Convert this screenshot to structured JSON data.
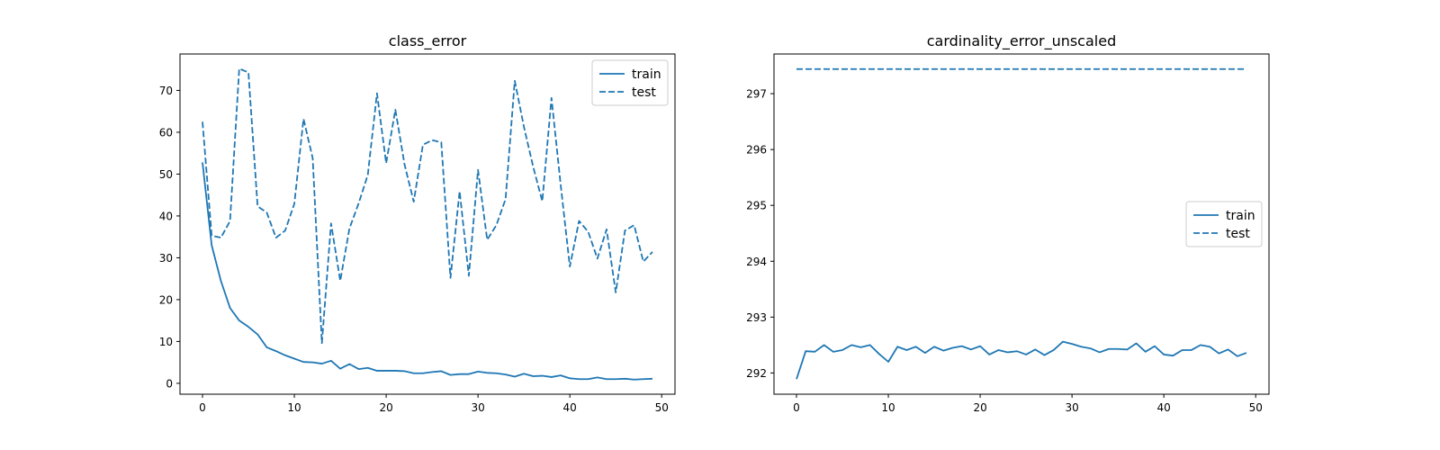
{
  "chart_data": [
    {
      "type": "line",
      "title": "class_error",
      "xlabel": "",
      "ylabel": "",
      "xlim": [
        -2.45,
        51.45
      ],
      "ylim": [
        -2.6,
        78.7
      ],
      "xticks": [
        0,
        10,
        20,
        30,
        40,
        50
      ],
      "yticks": [
        0,
        10,
        20,
        30,
        40,
        50,
        60,
        70
      ],
      "grid": false,
      "legend": "top-right",
      "series": [
        {
          "name": "train",
          "style": "solid",
          "color": "#1f77b4",
          "x": [
            0,
            1,
            2,
            3,
            4,
            5,
            6,
            7,
            8,
            9,
            10,
            11,
            12,
            13,
            14,
            15,
            16,
            17,
            18,
            19,
            20,
            21,
            22,
            23,
            24,
            25,
            26,
            27,
            28,
            29,
            30,
            31,
            32,
            33,
            34,
            35,
            36,
            37,
            38,
            39,
            40,
            41,
            42,
            43,
            44,
            45,
            46,
            47,
            48,
            49
          ],
          "values": [
            52.8,
            33,
            24.5,
            18,
            15,
            13.5,
            11.7,
            8.6,
            7.7,
            6.7,
            5.9,
            5.1,
            5,
            4.7,
            5.4,
            3.5,
            4.6,
            3.4,
            3.7,
            3,
            3,
            3,
            2.9,
            2.4,
            2.4,
            2.7,
            2.9,
            2,
            2.2,
            2.2,
            2.8,
            2.5,
            2.4,
            2.1,
            1.6,
            2.3,
            1.7,
            1.8,
            1.5,
            1.9,
            1.2,
            1,
            1,
            1.4,
            1,
            1,
            1.1,
            0.9,
            1,
            1.1
          ]
        },
        {
          "name": "test",
          "style": "dashed",
          "color": "#1f77b4",
          "x": [
            0,
            1,
            2,
            3,
            4,
            5,
            6,
            7,
            8,
            9,
            10,
            11,
            12,
            13,
            14,
            15,
            16,
            17,
            18,
            19,
            20,
            21,
            22,
            23,
            24,
            25,
            26,
            27,
            28,
            29,
            30,
            31,
            32,
            33,
            34,
            35,
            36,
            37,
            38,
            39,
            40,
            41,
            42,
            43,
            44,
            45,
            46,
            47,
            48,
            49
          ],
          "values": [
            62.5,
            35.3,
            34.8,
            38.8,
            75.2,
            74.3,
            42.3,
            40.8,
            34.8,
            36.5,
            42.9,
            63.2,
            53.8,
            9.6,
            38.2,
            24.5,
            37,
            43,
            49.8,
            69.3,
            52.6,
            65.4,
            52.3,
            43.4,
            57,
            58.1,
            57.6,
            25.2,
            45.9,
            25.7,
            51,
            34.3,
            37.8,
            44,
            72.3,
            61.3,
            51.8,
            43.5,
            68.2,
            47.5,
            27.9,
            38.8,
            36.2,
            29.8,
            36.8,
            21.7,
            36.5,
            37.8,
            29.1,
            31.4
          ]
        }
      ]
    },
    {
      "type": "line",
      "title": "cardinality_error_unscaled",
      "xlabel": "",
      "ylabel": "",
      "xlim": [
        -2.45,
        51.45
      ],
      "ylim": [
        291.62,
        297.71
      ],
      "xticks": [
        0,
        10,
        20,
        30,
        40,
        50
      ],
      "yticks": [
        292,
        293,
        294,
        295,
        296,
        297
      ],
      "grid": false,
      "legend": "center-right",
      "series": [
        {
          "name": "train",
          "style": "solid",
          "color": "#1f77b4",
          "x": [
            0,
            1,
            2,
            3,
            4,
            5,
            6,
            7,
            8,
            9,
            10,
            11,
            12,
            13,
            14,
            15,
            16,
            17,
            18,
            19,
            20,
            21,
            22,
            23,
            24,
            25,
            26,
            27,
            28,
            29,
            30,
            31,
            32,
            33,
            34,
            35,
            36,
            37,
            38,
            39,
            40,
            41,
            42,
            43,
            44,
            45,
            46,
            47,
            48,
            49
          ],
          "values": [
            291.89,
            292.39,
            292.38,
            292.5,
            292.38,
            292.41,
            292.5,
            292.46,
            292.5,
            292.34,
            292.2,
            292.47,
            292.41,
            292.47,
            292.36,
            292.47,
            292.4,
            292.45,
            292.48,
            292.42,
            292.48,
            292.33,
            292.41,
            292.37,
            292.39,
            292.33,
            292.42,
            292.32,
            292.41,
            292.56,
            292.52,
            292.47,
            292.44,
            292.37,
            292.43,
            292.43,
            292.42,
            292.53,
            292.38,
            292.48,
            292.33,
            292.31,
            292.41,
            292.41,
            292.5,
            292.47,
            292.35,
            292.42,
            292.3,
            292.36
          ]
        },
        {
          "name": "test",
          "style": "dashed",
          "color": "#1f77b4",
          "x": [
            0,
            49
          ],
          "values": [
            297.44,
            297.44
          ]
        }
      ]
    }
  ]
}
